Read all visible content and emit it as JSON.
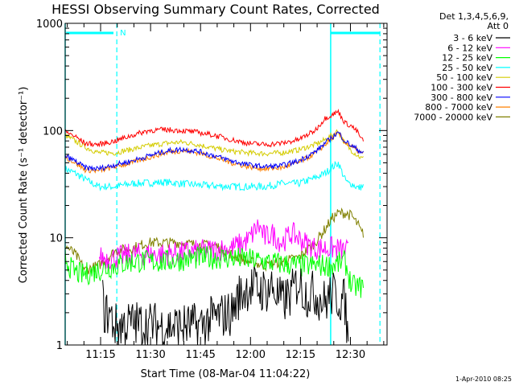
{
  "chart_data": {
    "type": "line",
    "title": "HESSI Observing Summary Count Rates, Corrected",
    "xlabel": "Start Time (08-Mar-04 11:04:22)",
    "ylabel": "Corrected Count Rate (s⁻¹ detector⁻¹)",
    "y_scale": "log",
    "ylim": [
      1,
      1000
    ],
    "xlim": [
      "11:04:22",
      "12:41:00"
    ],
    "y_ticks": [
      "1",
      "10",
      "100",
      "1000"
    ],
    "x_ticks": [
      "11:15",
      "11:30",
      "11:45",
      "12:00",
      "12:15",
      "12:30"
    ],
    "x_tick_minutes": [
      15,
      30,
      45,
      60,
      75,
      90
    ],
    "legend_header": [
      "Det 1,3,4,5,6,9,",
      "Att 0"
    ],
    "legend_position": "right",
    "timestamp": "1-Apr-2010 08:25",
    "marker_label": "N",
    "series": [
      {
        "name": "3 - 6 keV",
        "color": "#000000",
        "t": [
          0,
          10,
          11,
          12,
          13,
          15,
          20,
          30,
          40,
          45,
          50,
          52,
          55,
          60,
          62,
          65,
          68,
          70,
          72,
          75,
          78,
          80,
          84,
          85,
          86,
          88,
          89
        ],
        "y": [
          null,
          null,
          2.8,
          1.9,
          2.0,
          1.5,
          1.6,
          1.5,
          1.5,
          1.8,
          2.0,
          2.8,
          3.5,
          3.2,
          3.5,
          2.5,
          3.0,
          4.0,
          3.0,
          3.0,
          2.5,
          3.0,
          2.5,
          1.0,
          null,
          null,
          null
        ]
      },
      {
        "name": "6 - 12 keV",
        "color": "#ff00ff",
        "t": [
          0,
          5,
          10,
          15,
          20,
          30,
          40,
          50,
          55,
          58,
          60,
          62,
          65,
          68,
          70,
          72,
          75,
          80,
          85,
          87,
          89
        ],
        "y": [
          null,
          null,
          6.5,
          6.5,
          7.0,
          7.0,
          7.5,
          8.0,
          9.5,
          13.0,
          10.0,
          11.0,
          9.0,
          11.0,
          10.0,
          9.0,
          8.0,
          8.0,
          7.5,
          null,
          null
        ]
      },
      {
        "name": "12 - 25 keV",
        "color": "#00ff00",
        "t": [
          0,
          2,
          5,
          10,
          20,
          30,
          40,
          50,
          60,
          70,
          80,
          84,
          86,
          89
        ],
        "y": [
          6.5,
          5.0,
          4.5,
          5.0,
          6.0,
          6.0,
          6.5,
          6.5,
          6.0,
          5.5,
          5.5,
          6.0,
          3.5,
          3.5
        ]
      },
      {
        "name": "25 - 50 keV",
        "color": "#00ffff",
        "t": [
          0,
          3,
          6,
          10,
          15,
          20,
          30,
          40,
          50,
          60,
          65,
          70,
          75,
          78,
          80,
          82,
          84,
          85,
          86,
          88,
          89
        ],
        "y": [
          44,
          40,
          35,
          30,
          30,
          32,
          33,
          31,
          30,
          30,
          32,
          32,
          36,
          40,
          45,
          50,
          35,
          32,
          32,
          29,
          30
        ]
      },
      {
        "name": "50 - 100 keV",
        "color": "#d4cc00",
        "t": [
          0,
          3,
          6,
          10,
          15,
          20,
          25,
          30,
          35,
          40,
          45,
          50,
          55,
          60,
          65,
          70,
          75,
          78,
          80,
          82,
          84,
          86,
          88,
          89
        ],
        "y": [
          90,
          80,
          70,
          62,
          62,
          67,
          72,
          76,
          78,
          74,
          68,
          64,
          62,
          61,
          62,
          66,
          74,
          82,
          90,
          100,
          75,
          65,
          58,
          55
        ]
      },
      {
        "name": "100 - 300 keV",
        "color": "#ff0000",
        "t": [
          0,
          3,
          6,
          10,
          15,
          20,
          25,
          30,
          35,
          40,
          45,
          50,
          55,
          60,
          65,
          70,
          75,
          78,
          80,
          82,
          84,
          86,
          88,
          89
        ],
        "y": [
          98,
          88,
          76,
          74,
          80,
          90,
          100,
          102,
          100,
          96,
          90,
          82,
          76,
          74,
          76,
          82,
          100,
          130,
          140,
          150,
          118,
          110,
          95,
          82
        ]
      },
      {
        "name": "300 - 800 keV",
        "color": "#0000ff",
        "t": [
          0,
          3,
          6,
          10,
          15,
          20,
          25,
          30,
          35,
          40,
          45,
          50,
          55,
          60,
          65,
          70,
          75,
          78,
          80,
          82,
          84,
          86,
          88,
          89
        ],
        "y": [
          58,
          52,
          45,
          44,
          48,
          52,
          58,
          64,
          67,
          64,
          58,
          52,
          48,
          46,
          47,
          52,
          63,
          76,
          86,
          96,
          80,
          72,
          66,
          63
        ]
      },
      {
        "name": "800 - 7000 keV",
        "color": "#ff8000",
        "t": [
          0,
          3,
          6,
          10,
          15,
          20,
          25,
          30,
          35,
          40,
          45,
          50,
          55,
          60,
          65,
          70,
          75,
          78,
          80,
          82,
          84,
          86,
          88,
          89
        ],
        "y": [
          57,
          50,
          43,
          42,
          46,
          50,
          56,
          62,
          65,
          62,
          56,
          50,
          46,
          44,
          45,
          50,
          61,
          74,
          84,
          94,
          78,
          70,
          64,
          61
        ]
      },
      {
        "name": "7000 - 20000 keV",
        "color": "#808000",
        "t": [
          0,
          3,
          6,
          10,
          15,
          20,
          25,
          30,
          35,
          40,
          45,
          50,
          55,
          60,
          65,
          70,
          75,
          78,
          80,
          82,
          84,
          86,
          88,
          89
        ],
        "y": [
          8.5,
          7.0,
          5.0,
          5.5,
          7.5,
          8.0,
          9.0,
          9.0,
          9.0,
          8.5,
          8.5,
          7.0,
          6.0,
          5.5,
          6.0,
          6.5,
          9.0,
          12.0,
          15.0,
          17.0,
          17.0,
          16.0,
          13.0,
          11.0
        ]
      }
    ]
  }
}
